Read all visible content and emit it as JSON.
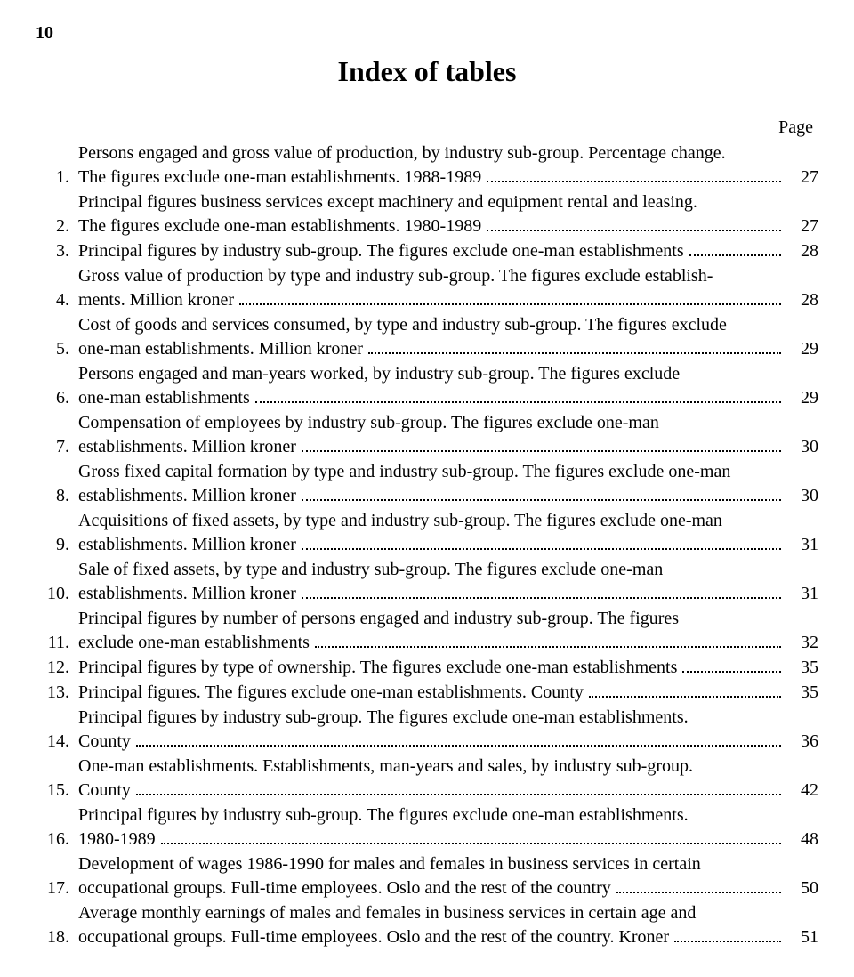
{
  "page_number_top": "10",
  "title": "Index of tables",
  "page_label": "Page",
  "text_color": "#000000",
  "background_color": "#ffffff",
  "entries": [
    {
      "n": "1.",
      "pre": "Persons engaged and gross value of production, by industry sub-group. Percentage change.",
      "tail": "The figures exclude one-man establishments. 1988-1989",
      "pg": "27"
    },
    {
      "n": "2.",
      "pre": "Principal figures business services except machinery and equipment rental and leasing.",
      "tail": "The figures exclude one-man establishments. 1980-1989",
      "pg": "27"
    },
    {
      "n": "3.",
      "pre": "",
      "tail": "Principal figures by industry sub-group. The figures exclude one-man establishments",
      "pg": "28"
    },
    {
      "n": "4.",
      "pre": "Gross value of production by type and industry sub-group. The figures exclude establish-",
      "tail": "ments. Million kroner",
      "pg": "28"
    },
    {
      "n": "5.",
      "pre": "Cost of goods and services consumed, by type and industry sub-group. The figures exclude",
      "tail": "one-man establishments. Million kroner",
      "pg": "29"
    },
    {
      "n": "6.",
      "pre": "Persons engaged and man-years worked, by industry sub-group. The figures exclude",
      "tail": "one-man establishments",
      "pg": "29"
    },
    {
      "n": "7.",
      "pre": "Compensation of employees by industry sub-group. The figures exclude one-man",
      "tail": "establishments. Million kroner",
      "pg": "30"
    },
    {
      "n": "8.",
      "pre": "Gross fixed capital formation by type and industry sub-group. The figures exclude one-man",
      "tail": "establishments. Million kroner",
      "pg": "30"
    },
    {
      "n": "9.",
      "pre": "Acquisitions of fixed assets, by type and industry sub-group. The figures exclude one-man",
      "tail": "establishments. Million kroner",
      "pg": "31"
    },
    {
      "n": "10.",
      "pre": "Sale of fixed assets, by type and industry sub-group. The figures exclude one-man",
      "tail": "establishments. Million kroner",
      "pg": "31"
    },
    {
      "n": "11.",
      "pre": "Principal figures by number of persons engaged and industry sub-group. The figures",
      "tail": "exclude one-man establishments",
      "pg": "32"
    },
    {
      "n": "12.",
      "pre": "",
      "tail": "Principal figures by type of ownership. The figures exclude one-man establishments",
      "pg": "35"
    },
    {
      "n": "13.",
      "pre": "",
      "tail": "Principal figures. The figures exclude one-man establishments. County",
      "pg": "35"
    },
    {
      "n": "14.",
      "pre": "Principal figures by industry sub-group. The figures exclude one-man establishments.",
      "tail": "County",
      "pg": "36"
    },
    {
      "n": "15.",
      "pre": "One-man establishments. Establishments, man-years and sales, by industry sub-group.",
      "tail": "County",
      "pg": "42"
    },
    {
      "n": "16.",
      "pre": "Principal figures by industry sub-group. The figures exclude one-man establishments.",
      "tail": "1980-1989",
      "pg": "48"
    },
    {
      "n": "17.",
      "pre": "Development of wages 1986-1990 for males and females in business services in certain",
      "tail": "occupational groups. Full-time employees. Oslo and the rest of the country",
      "pg": "50"
    },
    {
      "n": "18.",
      "pre": "Average monthly earnings of males and females in business services in certain age and",
      "tail": "occupational groups. Full-time employees. Oslo and the rest of the country. Kroner",
      "pg": "51"
    }
  ]
}
